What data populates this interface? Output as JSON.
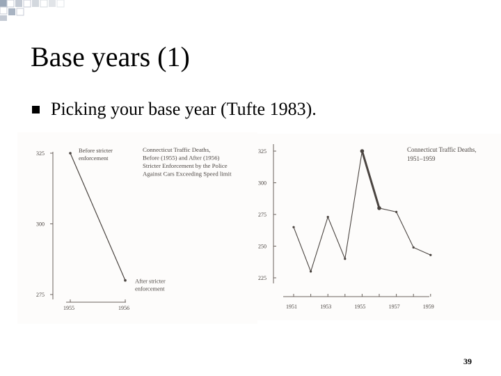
{
  "slide": {
    "title": "Base years (1)",
    "bullet": "Picking your base year (Tufte 1983).",
    "page_number": "39"
  },
  "colors": {
    "ink": "#4a4440",
    "slide_text": "#000000"
  },
  "chart_data": [
    {
      "type": "line",
      "title_lines": [
        "Connecticut Traffic Deaths,",
        "Before (1955) and After (1956)",
        "Stricter Enforcement by the Police",
        "Against Cars Exceeding Speed limit"
      ],
      "x": [
        1955,
        1956
      ],
      "x_ticks": [
        "1955",
        "1956"
      ],
      "values": [
        325,
        280
      ],
      "y_ticks": [
        "325",
        "300",
        "275"
      ],
      "ylim": [
        275,
        325
      ],
      "point_labels": [
        [
          "Before stricter",
          "enforcement"
        ],
        [
          "After stricter",
          "enforcement"
        ]
      ]
    },
    {
      "type": "line",
      "title_lines": [
        "Connecticut Traffic Deaths,",
        "1951–1959"
      ],
      "x": [
        1951,
        1952,
        1953,
        1954,
        1955,
        1956,
        1957,
        1958,
        1959
      ],
      "x_ticks": [
        "1951",
        "1953",
        "1955",
        "1957",
        "1959"
      ],
      "values": [
        265,
        230,
        273,
        240,
        325,
        280,
        277,
        249,
        243
      ],
      "highlight": [
        1955,
        1956
      ],
      "y_ticks": [
        "325",
        "300",
        "275",
        "250",
        "225"
      ],
      "ylim": [
        225,
        325
      ]
    }
  ]
}
